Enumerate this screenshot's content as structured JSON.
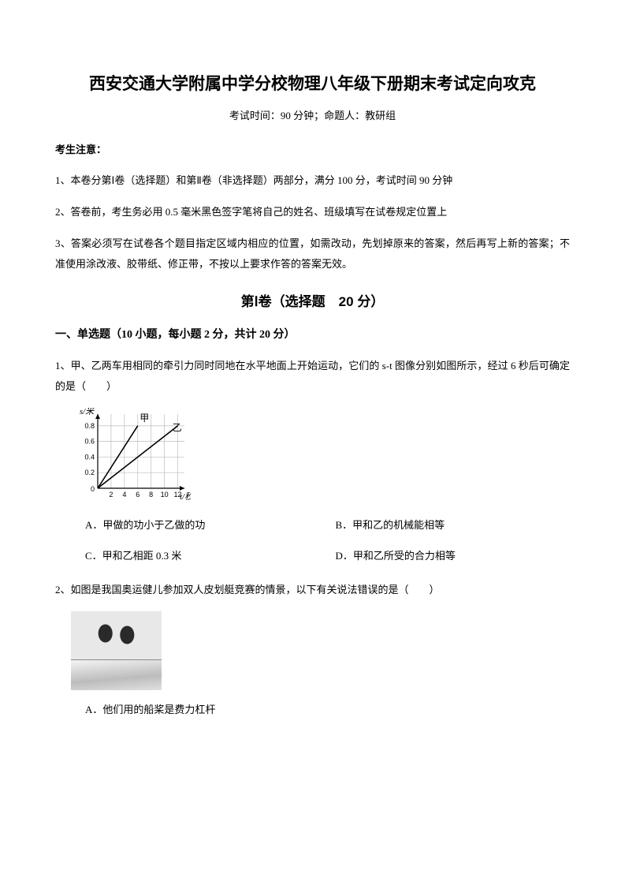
{
  "title": "西安交通大学附属中学分校物理八年级下册期末考试定向攻克",
  "subtitle": "考试时间：90 分钟；命题人：教研组",
  "notice_header": "考生注意：",
  "notices": [
    "1、本卷分第Ⅰ卷（选择题）和第Ⅱ卷（非选择题）两部分，满分 100 分，考试时间 90 分钟",
    "2、答卷前，考生务必用 0.5 毫米黑色签字笔将自己的姓名、班级填写在试卷规定位置上",
    "3、答案必须写在试卷各个题目指定区域内相应的位置，如需改动，先划掉原来的答案，然后再写上新的答案；不准使用涂改液、胶带纸、修正带，不按以上要求作答的答案无效。"
  ],
  "part1_title": "第Ⅰ卷（选择题　20 分）",
  "sectionA_title": "一、单选题（10 小题，每小题 2 分，共计 20 分）",
  "q1_text": "1、甲、乙两车用相同的牵引力同时同地在水平地面上开始运动，它们的 s-t 图像分别如图所示，经过 6 秒后可确定的是（　　）",
  "q1_options": {
    "A": "A．甲做的功小于乙做的功",
    "B": "B．甲和乙的机械能相等",
    "C": "C．甲和乙相距 0.3 米",
    "D": "D．甲和乙所受的合力相等"
  },
  "q2_text": "2、如图是我国奥运健儿参加双人皮划艇竞赛的情景，以下有关说法错误的是（　　）",
  "q2_optA": "A．他们用的船桨是费力杠杆",
  "chart": {
    "type": "line",
    "width": 148,
    "height": 120,
    "x_label": "t/秒",
    "y_label": "s/米",
    "x_ticks": [
      2,
      4,
      6,
      8,
      10,
      12
    ],
    "y_ticks": [
      0.2,
      0.4,
      0.6,
      0.8
    ],
    "x_range": [
      0,
      13
    ],
    "y_range": [
      0,
      0.95
    ],
    "axis_color": "#000000",
    "grid_color": "#bdbdbd",
    "line_color": "#000000",
    "line_width": 1.6,
    "series": [
      {
        "name": "甲",
        "points": [
          [
            0,
            0
          ],
          [
            6,
            0.8
          ]
        ],
        "label_at": [
          6.3,
          0.86
        ]
      },
      {
        "name": "乙",
        "points": [
          [
            0,
            0
          ],
          [
            12,
            0.8
          ]
        ],
        "label_at": [
          11.2,
          0.74
        ]
      }
    ],
    "label_fontsize": 11,
    "tick_fontsize": 9
  }
}
